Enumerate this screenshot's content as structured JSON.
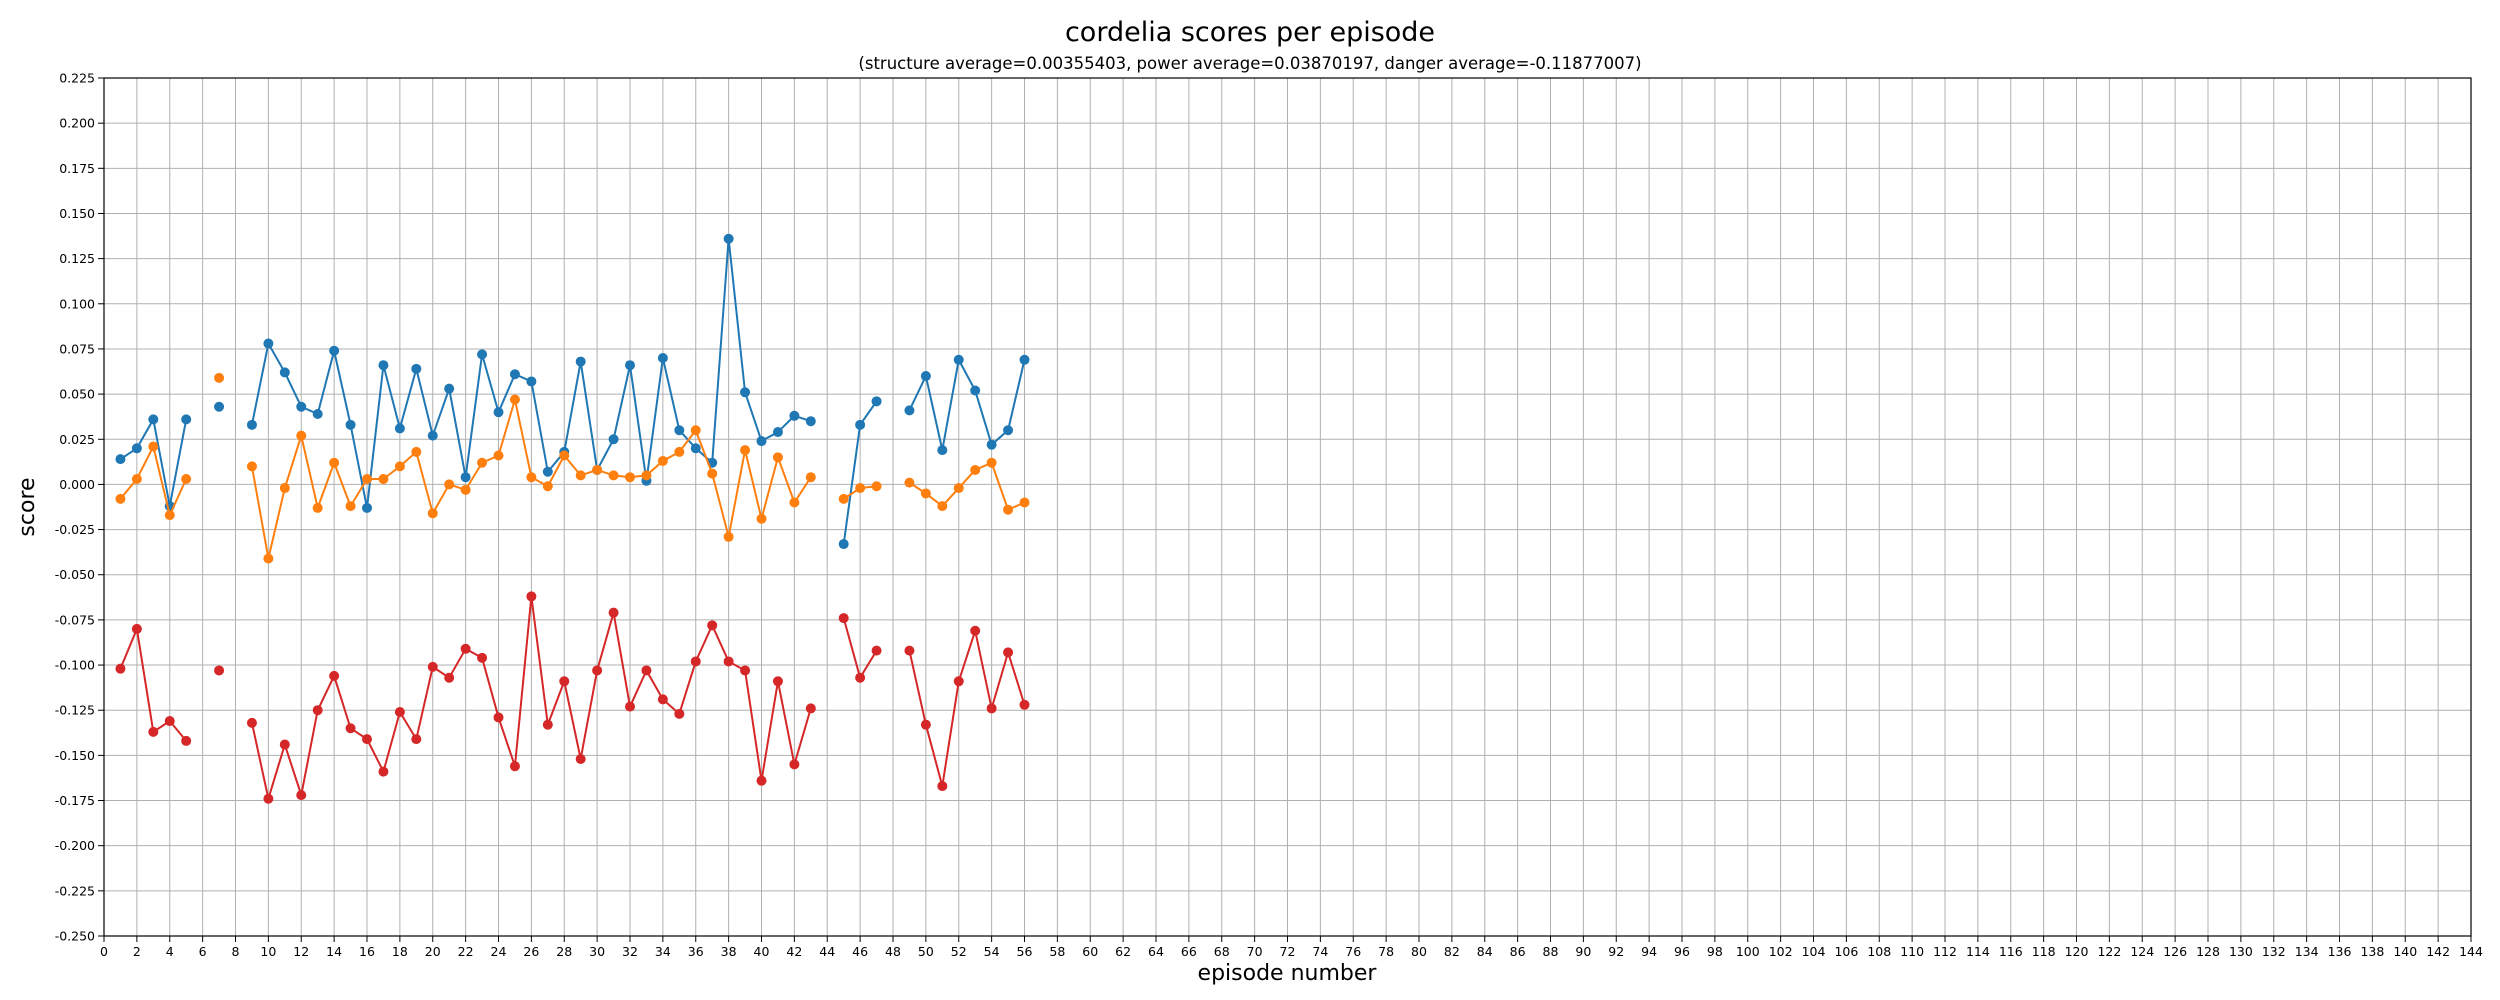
{
  "chart_data": {
    "type": "line",
    "title": "cordelia scores per episode",
    "subtitle": "(structure average=0.00355403, power average=0.03870197, danger average=-0.11877007)",
    "xlabel": "episode number",
    "ylabel": "score",
    "xlim": [
      0,
      144
    ],
    "ylim": [
      -0.25,
      0.225
    ],
    "xticks": [
      0,
      2,
      4,
      6,
      8,
      10,
      12,
      14,
      16,
      18,
      20,
      22,
      24,
      26,
      28,
      30,
      32,
      34,
      36,
      38,
      40,
      42,
      44,
      46,
      48,
      50,
      52,
      54,
      56,
      58,
      60,
      62,
      64,
      66,
      68,
      70,
      72,
      74,
      76,
      78,
      80,
      82,
      84,
      86,
      88,
      90,
      92,
      94,
      96,
      98,
      100,
      102,
      104,
      106,
      108,
      110,
      112,
      114,
      116,
      118,
      120,
      122,
      124,
      126,
      128,
      130,
      132,
      134,
      136,
      138,
      140,
      142,
      144
    ],
    "yticks": [
      "-0.250",
      "-0.225",
      "-0.200",
      "-0.175",
      "-0.150",
      "-0.125",
      "-0.100",
      "-0.075",
      "-0.050",
      "-0.025",
      "0.000",
      "0.025",
      "0.050",
      "0.075",
      "0.100",
      "0.125",
      "0.150",
      "0.175",
      "0.200",
      "0.225"
    ],
    "grid": true,
    "x": [
      1,
      2,
      3,
      4,
      5,
      6,
      7,
      8,
      9,
      10,
      11,
      12,
      13,
      14,
      15,
      16,
      17,
      18,
      19,
      20,
      21,
      22,
      23,
      24,
      25,
      26,
      27,
      28,
      29,
      30,
      31,
      32,
      33,
      34,
      35,
      36,
      37,
      38,
      39,
      40,
      41,
      42,
      43,
      44,
      45,
      46,
      47,
      48,
      49,
      50,
      51,
      52,
      53,
      54,
      55,
      56
    ],
    "series": [
      {
        "color": "#1f77b4",
        "values": [
          0.014,
          0.02,
          0.036,
          -0.012,
          0.036,
          null,
          0.043,
          null,
          0.033,
          0.078,
          0.062,
          0.043,
          0.039,
          0.074,
          0.033,
          -0.013,
          0.066,
          0.031,
          0.064,
          0.027,
          0.053,
          0.004,
          0.072,
          0.04,
          0.061,
          0.057,
          0.007,
          0.018,
          0.068,
          0.008,
          0.025,
          0.066,
          0.002,
          0.07,
          0.03,
          0.02,
          0.012,
          0.136,
          0.051,
          0.024,
          0.029,
          0.038,
          0.035,
          null,
          -0.033,
          0.033,
          0.046,
          null,
          0.041,
          0.06,
          0.019,
          0.069,
          0.052,
          0.022,
          0.03,
          0.069
        ]
      },
      {
        "color": "#ff7f0e",
        "values": [
          -0.008,
          0.003,
          0.021,
          -0.017,
          0.003,
          null,
          0.059,
          null,
          0.01,
          -0.041,
          -0.002,
          0.027,
          -0.013,
          0.012,
          -0.012,
          0.003,
          0.003,
          0.01,
          0.018,
          -0.016,
          0.0,
          -0.003,
          0.012,
          0.016,
          0.047,
          0.004,
          -0.001,
          0.016,
          0.005,
          0.008,
          0.005,
          0.004,
          0.005,
          0.013,
          0.018,
          0.03,
          0.006,
          -0.029,
          0.019,
          -0.019,
          0.015,
          -0.01,
          0.004,
          null,
          -0.008,
          -0.002,
          -0.001,
          null,
          0.001,
          -0.005,
          -0.012,
          -0.002,
          0.008,
          0.012,
          -0.014,
          -0.01
        ]
      },
      {
        "color": "#d62728",
        "values": [
          -0.102,
          -0.08,
          -0.137,
          -0.131,
          -0.142,
          null,
          -0.103,
          null,
          -0.132,
          -0.174,
          -0.144,
          -0.172,
          -0.125,
          -0.106,
          -0.135,
          -0.141,
          -0.159,
          -0.126,
          -0.141,
          -0.101,
          -0.107,
          -0.091,
          -0.096,
          -0.129,
          -0.156,
          -0.062,
          -0.133,
          -0.109,
          -0.152,
          -0.103,
          -0.071,
          -0.123,
          -0.103,
          -0.119,
          -0.127,
          -0.098,
          -0.078,
          -0.098,
          -0.103,
          -0.164,
          -0.109,
          -0.155,
          -0.124,
          null,
          -0.074,
          -0.107,
          -0.092,
          null,
          -0.092,
          -0.133,
          -0.167,
          -0.109,
          -0.081,
          -0.124,
          -0.093,
          -0.122
        ]
      }
    ]
  }
}
